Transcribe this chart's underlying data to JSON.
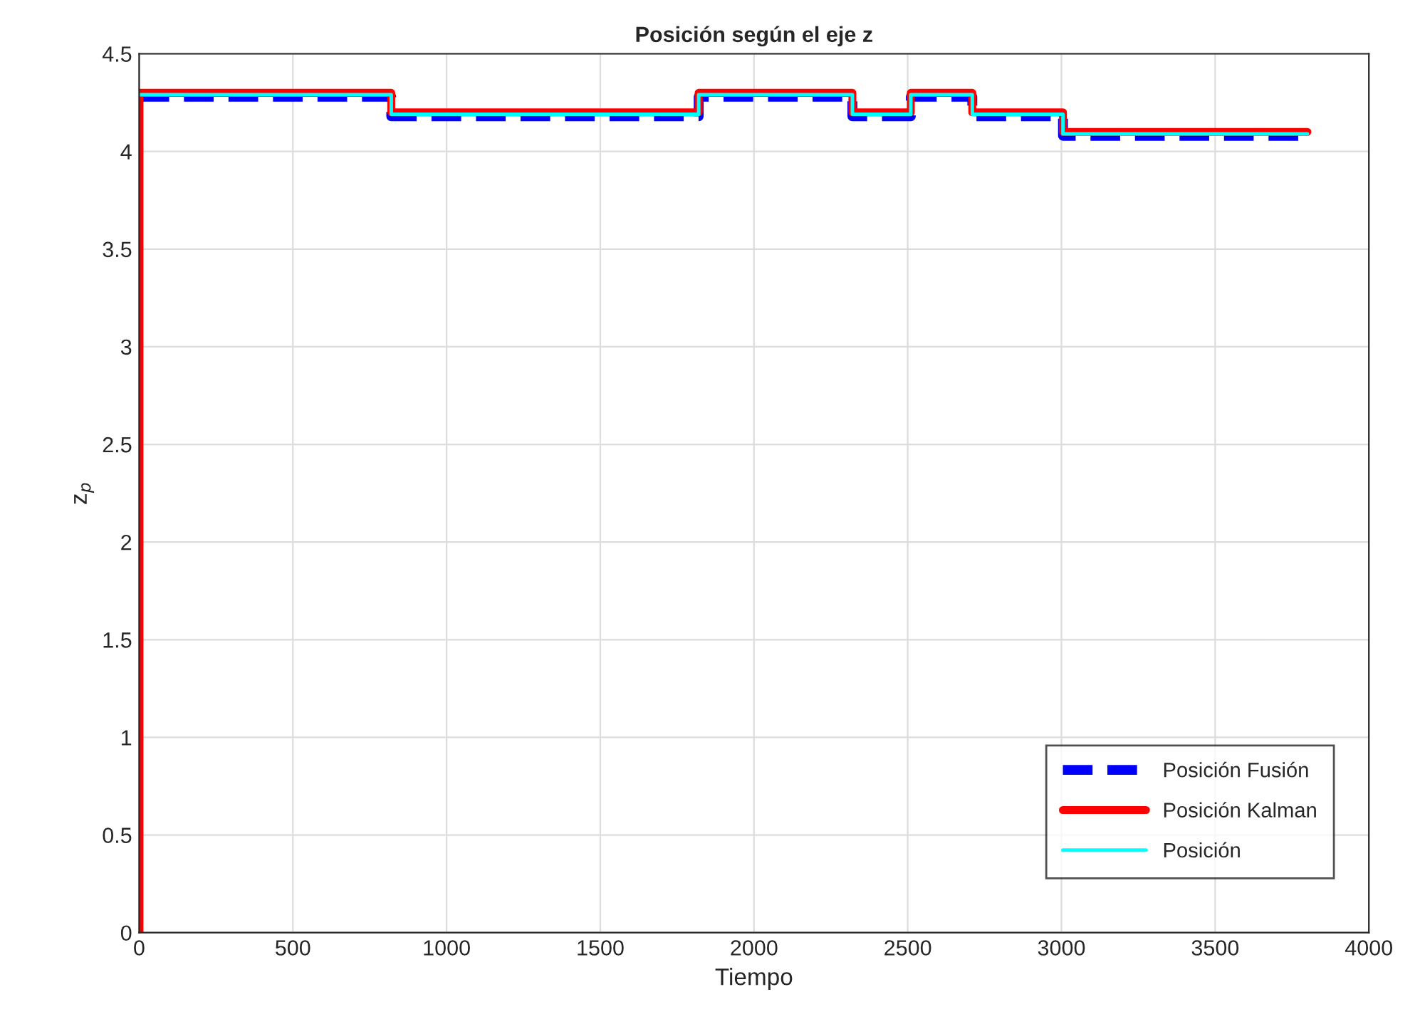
{
  "chart_data": {
    "type": "step",
    "title": "Posición según el eje z",
    "xlabel": "Tiempo",
    "ylabel": "z$_{p}$",
    "xlim": [
      0,
      4000
    ],
    "xticks": [
      0,
      500,
      1000,
      1500,
      2000,
      2500,
      3000,
      3500,
      4000
    ],
    "ylim": [
      0,
      4.5
    ],
    "yticks": [
      0,
      0.5,
      1,
      1.5,
      2,
      2.5,
      3,
      3.5,
      4,
      4.5
    ],
    "grid": true,
    "legend": "bottom right",
    "series": [
      {
        "name": "Posición Fusión",
        "color": "#0000ff",
        "line_style": "dashed",
        "x": [
          1,
          820,
          1820,
          2320,
          2510,
          2710,
          3005,
          3800
        ],
        "values": [
          4.28,
          4.18,
          4.28,
          4.18,
          4.28,
          4.18,
          4.08,
          4.08
        ]
      },
      {
        "name": "Posición Kalman",
        "color": "#ff0000",
        "line_style": "solid",
        "x": [
          0,
          1,
          820,
          1820,
          2320,
          2510,
          2710,
          3005,
          3800
        ],
        "values": [
          0,
          4.3,
          4.2,
          4.3,
          4.2,
          4.3,
          4.2,
          4.1,
          4.1
        ]
      },
      {
        "name": "Posición",
        "color": "#00ffff",
        "line_style": "solid",
        "x": [
          1,
          820,
          1820,
          2320,
          2510,
          2710,
          3005,
          3800
        ],
        "values": [
          4.29,
          4.19,
          4.29,
          4.19,
          4.29,
          4.19,
          4.09,
          4.09
        ]
      }
    ]
  }
}
